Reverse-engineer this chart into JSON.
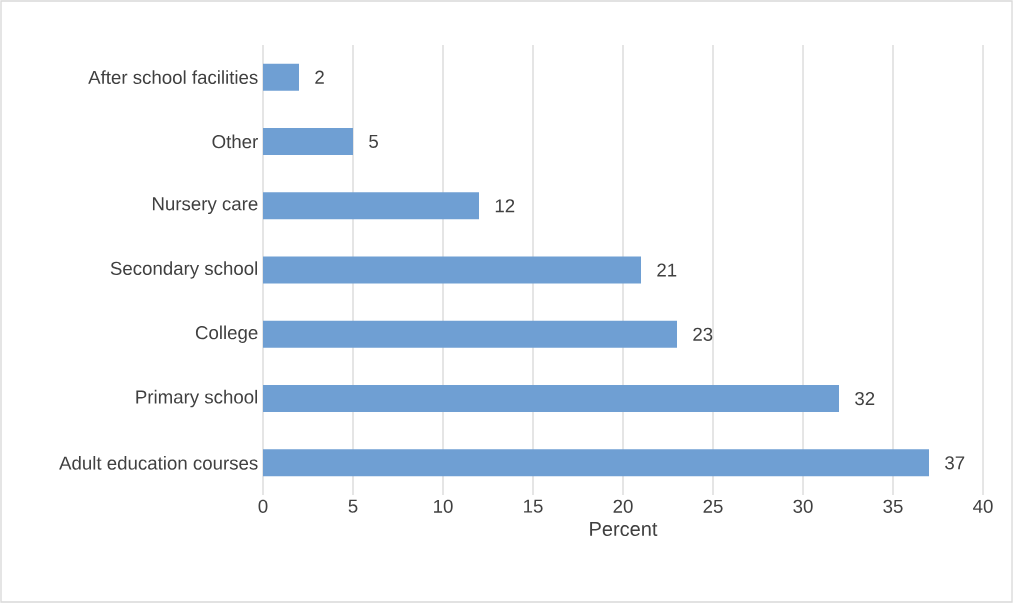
{
  "chart_data": {
    "type": "bar",
    "orientation": "horizontal",
    "categories": [
      "After school facilities",
      "Other",
      "Nursery care",
      "Secondary school",
      "College",
      "Primary school",
      "Adult education courses"
    ],
    "values": [
      2,
      5,
      12,
      21,
      23,
      32,
      37
    ],
    "color": "#6f9fd3",
    "xlabel": "Percent",
    "xlim": [
      0,
      40
    ],
    "xticks": [
      0,
      5,
      10,
      15,
      20,
      25,
      30,
      35,
      40
    ],
    "grid": "x",
    "data_labels": true
  }
}
